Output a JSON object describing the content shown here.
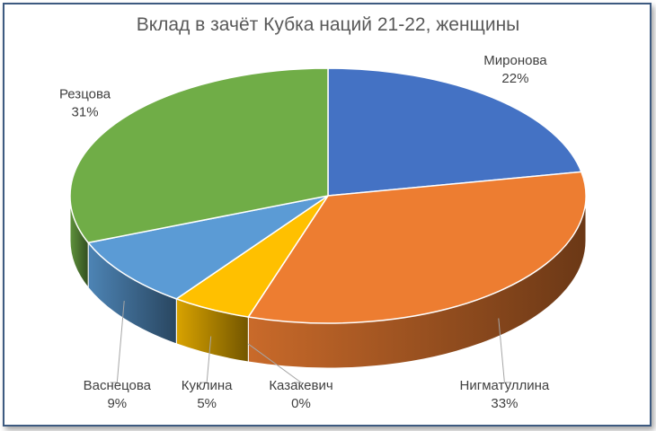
{
  "chart_data": {
    "type": "pie",
    "title": "Вклад в зачёт Кубка наций 21-22, женщины",
    "three_d": true,
    "slices": [
      {
        "name": "Миронова",
        "value": 22,
        "label": "22%",
        "color": "#4472C4"
      },
      {
        "name": "Нигматуллина",
        "value": 33,
        "label": "33%",
        "color": "#ED7D31"
      },
      {
        "name": "Казакевич",
        "value": 0,
        "label": "0%",
        "color": "#A5A5A5"
      },
      {
        "name": "Куклина",
        "value": 5,
        "label": "5%",
        "color": "#FFC000"
      },
      {
        "name": "Васнецова",
        "value": 9,
        "label": "9%",
        "color": "#5B9BD5"
      },
      {
        "name": "Резцова",
        "value": 31,
        "label": "31%",
        "color": "#70AD47"
      }
    ],
    "legend": "none"
  }
}
